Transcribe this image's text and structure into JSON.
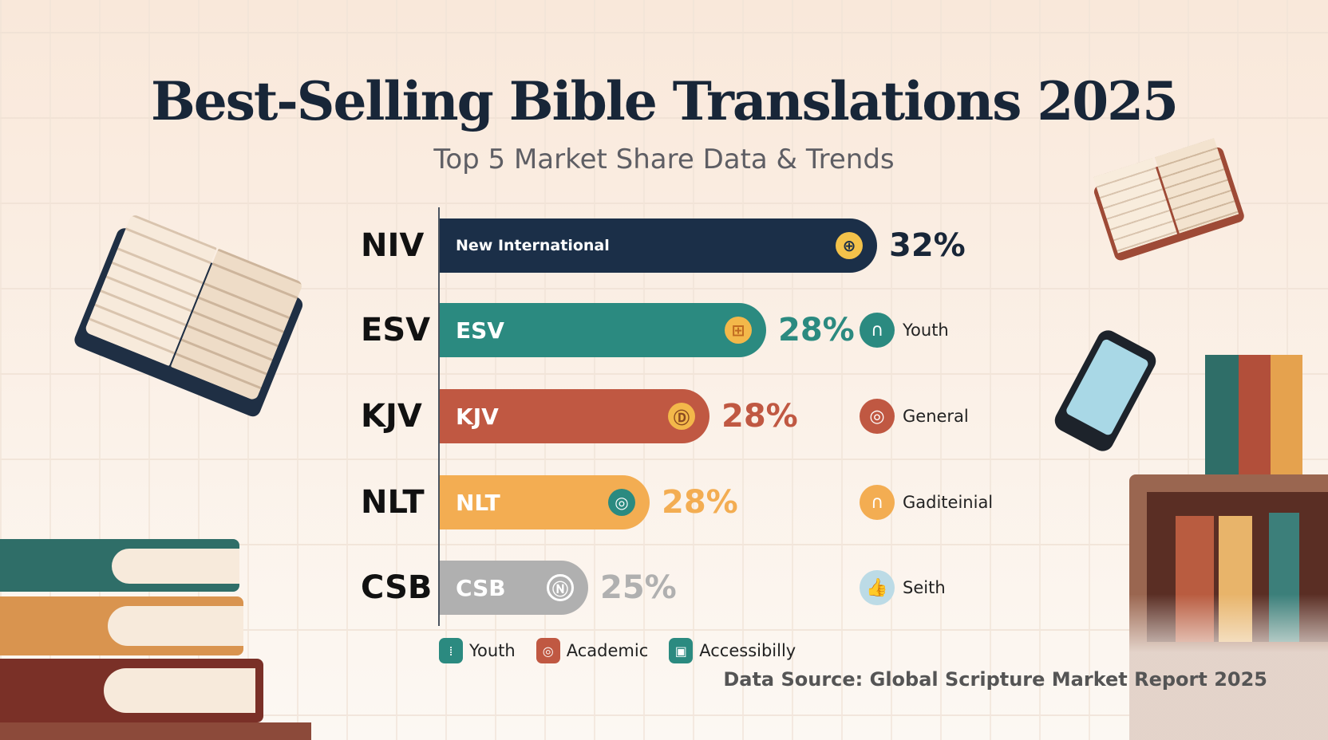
{
  "title": "Best-Selling Bible Translations 2025",
  "subtitle": "Top 5 Market Share Data & Trends",
  "chart_data": {
    "type": "bar",
    "orientation": "horizontal",
    "title": "Best-Selling Bible Translations 2025",
    "subtitle": "Top 5 Market Share Data & Trends",
    "categories": [
      "NIV",
      "ESV",
      "KJV",
      "NLT",
      "CSB"
    ],
    "bar_labels": [
      "New International",
      "ESV",
      "KJV",
      "NLT",
      "CSB"
    ],
    "values": [
      32,
      28,
      28,
      28,
      25
    ],
    "value_labels": [
      "32%",
      "28%",
      "28%",
      "28%",
      "25%"
    ],
    "colors": [
      "#1b2f48",
      "#2b8a80",
      "#c05842",
      "#f3ad52",
      "#b0b0b0"
    ],
    "segments": [
      null,
      "Youth",
      "General",
      "Gaditeinial",
      "Seith"
    ],
    "segment_colors": [
      null,
      "#2b8a80",
      "#c05842",
      "#f3ad52",
      "#bcdbe6"
    ],
    "legend": [
      {
        "label": "Youth",
        "color": "#2b8a80"
      },
      {
        "label": "Academic",
        "color": "#c05842"
      },
      {
        "label": "Accessibilly",
        "color": "#2b8a80"
      }
    ],
    "legend_placement": "bottom",
    "grid": true
  },
  "source": "Data Source: Global Scripture Market Report 2025"
}
